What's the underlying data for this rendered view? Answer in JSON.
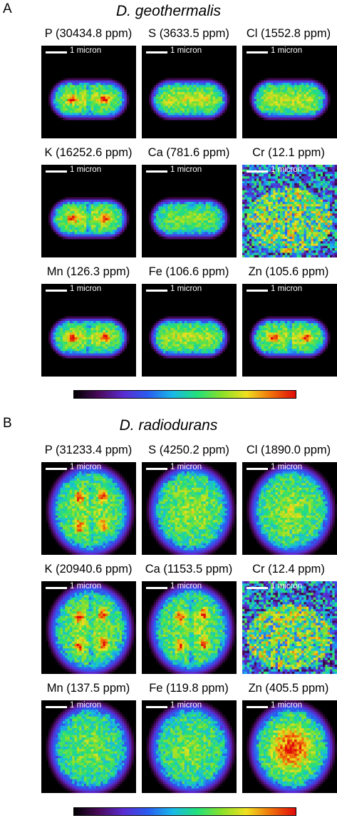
{
  "colorbar_colors": [
    "#000000",
    "#4a0a5a",
    "#5a2bd0",
    "#2a5cf0",
    "#19b8e8",
    "#22e07a",
    "#8ae02a",
    "#f0e020",
    "#f0700a",
    "#e00a0a"
  ],
  "panels": [
    {
      "letter": "A",
      "species": "D. geothermalis",
      "maps": [
        {
          "element": "P",
          "label": "P (30434.8 ppm)",
          "scale_label": "1 micron",
          "shape": "rod-two"
        },
        {
          "element": "S",
          "label": "S (3633.5 ppm)",
          "scale_label": "1 micron",
          "shape": "rod"
        },
        {
          "element": "Cl",
          "label": "Cl (1552.8 ppm)",
          "scale_label": "1 micron",
          "shape": "rod"
        },
        {
          "element": "K",
          "label": "K (16252.6 ppm)",
          "scale_label": "1 micron",
          "shape": "rod-two"
        },
        {
          "element": "Ca",
          "label": "Ca (781.6 ppm)",
          "scale_label": "1 micron",
          "shape": "rod-dim"
        },
        {
          "element": "Cr",
          "label": "Cr (12.1 ppm)",
          "scale_label": "1 micron",
          "shape": "noise"
        },
        {
          "element": "Mn",
          "label": "Mn (126.3 ppm)",
          "scale_label": "1 micron",
          "shape": "rod-two"
        },
        {
          "element": "Fe",
          "label": "Fe (106.6 ppm)",
          "scale_label": "1 micron",
          "shape": "rod"
        },
        {
          "element": "Zn",
          "label": "Zn (105.6 ppm)",
          "scale_label": "1 micron",
          "shape": "rod-two"
        }
      ]
    },
    {
      "letter": "B",
      "species": "D. radiodurans",
      "maps": [
        {
          "element": "P",
          "label": "P (31233.4 ppm)",
          "scale_label": "1 micron",
          "shape": "round-quad"
        },
        {
          "element": "S",
          "label": "S (4250.2 ppm)",
          "scale_label": "1 micron",
          "shape": "round"
        },
        {
          "element": "Cl",
          "label": "Cl (1890.0 ppm)",
          "scale_label": "1 micron",
          "shape": "round"
        },
        {
          "element": "K",
          "label": "K (20940.6 ppm)",
          "scale_label": "1 micron",
          "shape": "round-quad"
        },
        {
          "element": "Ca",
          "label": "Ca (1153.5 ppm)",
          "scale_label": "1 micron",
          "shape": "round-quad"
        },
        {
          "element": "Cr",
          "label": "Cr (12.4 ppm)",
          "scale_label": "1 micron",
          "shape": "noise"
        },
        {
          "element": "Mn",
          "label": "Mn (137.5 ppm)",
          "scale_label": "1 micron",
          "shape": "round-dim"
        },
        {
          "element": "Fe",
          "label": "Fe (119.8 ppm)",
          "scale_label": "1 micron",
          "shape": "round-dim"
        },
        {
          "element": "Zn",
          "label": "Zn (405.5 ppm)",
          "scale_label": "1 micron",
          "shape": "round-hot"
        }
      ]
    }
  ]
}
